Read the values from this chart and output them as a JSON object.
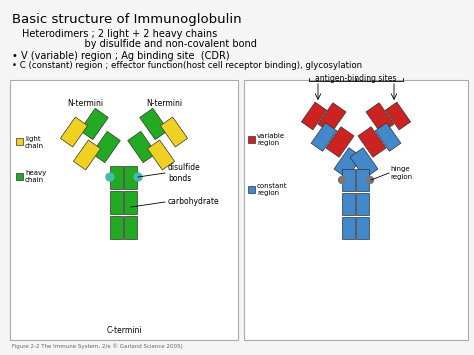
{
  "title": "Basic structure of Immunoglobulin",
  "line1": "Heterodimers ; 2 light + 2 heavy chains",
  "line2": "                    by disulfide and non-covalent bond",
  "bullet1": "• V (variable) region ; Ag binding site  (CDR)",
  "bullet2": "• C (constant) region ; effector function(host cell receptor binding), glycosylation",
  "caption": "Figure 2-2 The Immune System, 2/e © Garland Science 2005)",
  "slide_bg": "#f5f5f5",
  "yellow": "#f0d020",
  "green": "#22aa22",
  "red": "#cc2222",
  "blue": "#4488cc",
  "teal": "#44bbaa"
}
